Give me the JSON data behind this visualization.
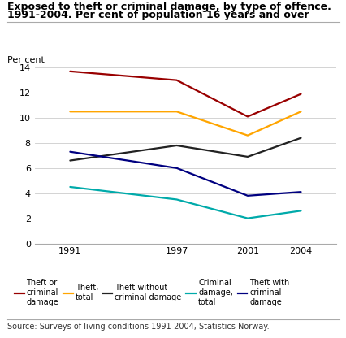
{
  "title_line1": "Exposed to theft or criminal damage, by type of offence.",
  "title_line2": "1991-2004. Per cent of population 16 years and over",
  "ylabel": "Per cent",
  "source": "Source: Surveys of living conditions 1991-2004, Statistics Norway.",
  "years": [
    1991,
    1997,
    2001,
    2004
  ],
  "series": [
    {
      "label": "Theft or\ncriminal\ndamage",
      "color": "#990000",
      "values": [
        13.7,
        13.0,
        10.1,
        11.9
      ]
    },
    {
      "label": "Theft,\ntotal",
      "color": "#FFA500",
      "values": [
        10.5,
        10.5,
        8.6,
        10.5
      ]
    },
    {
      "label": "Theft without\ncriminal damage",
      "color": "#222222",
      "values": [
        6.6,
        7.8,
        6.9,
        8.4
      ]
    },
    {
      "label": "Criminal\ndamage,\ntotal",
      "color": "#00AAAA",
      "values": [
        4.5,
        3.5,
        2.0,
        2.6
      ]
    },
    {
      "label": "Theft with\ncriminal\ndamage",
      "color": "#000080",
      "values": [
        7.3,
        6.0,
        3.8,
        4.1
      ]
    }
  ],
  "ylim": [
    0,
    14
  ],
  "yticks": [
    0,
    2,
    4,
    6,
    8,
    10,
    12,
    14
  ],
  "background_color": "#ffffff",
  "title_fontsize": 9,
  "ylabel_fontsize": 8,
  "tick_fontsize": 8,
  "legend_fontsize": 7,
  "source_fontsize": 7,
  "linewidth": 1.6,
  "xlim_left": 1989,
  "xlim_right": 2006
}
